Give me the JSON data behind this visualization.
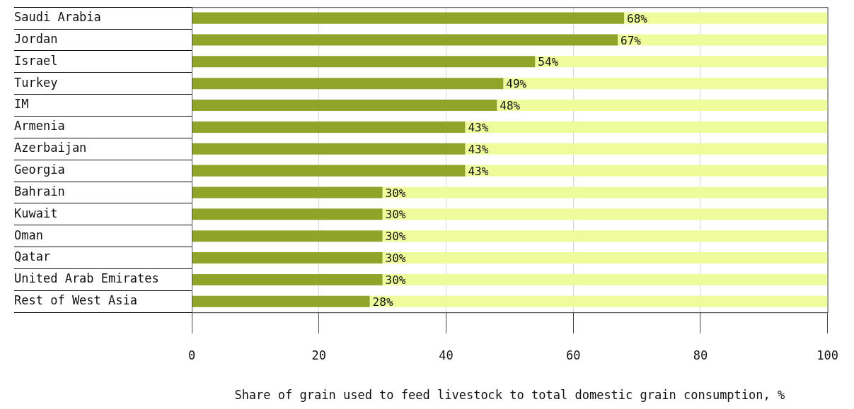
{
  "chart_data": {
    "type": "bar",
    "orientation": "horizontal",
    "stacked": true,
    "xlabel": "Share of grain used to feed livestock to total domestic grain consumption, %",
    "categories": [
      "Saudi Arabia",
      "Jordan",
      "Israel",
      "Turkey",
      "IM",
      "Armenia",
      "Azerbaijan",
      "Georgia",
      "Bahrain",
      "Kuwait",
      "Oman",
      "Qatar",
      "United Arab Emirates",
      "Rest of West Asia"
    ],
    "series": [
      {
        "color": "#8fa428",
        "values": [
          68,
          67,
          54,
          49,
          48,
          43,
          43,
          43,
          30,
          30,
          30,
          30,
          30,
          28
        ],
        "value_labels": [
          "68%",
          "67%",
          "54%",
          "49%",
          "48%",
          "43%",
          "43%",
          "43%",
          "30%",
          "30%",
          "30%",
          "30%",
          "30%",
          "28%"
        ]
      },
      {
        "color": "#eefc9c",
        "values": [
          32,
          33,
          46,
          51,
          52,
          57,
          57,
          57,
          70,
          70,
          70,
          70,
          70,
          72
        ]
      }
    ],
    "xlim": [
      0,
      100
    ],
    "xticks": [
      0,
      20,
      40,
      60,
      80,
      100
    ],
    "grid": "x",
    "legend": false
  }
}
